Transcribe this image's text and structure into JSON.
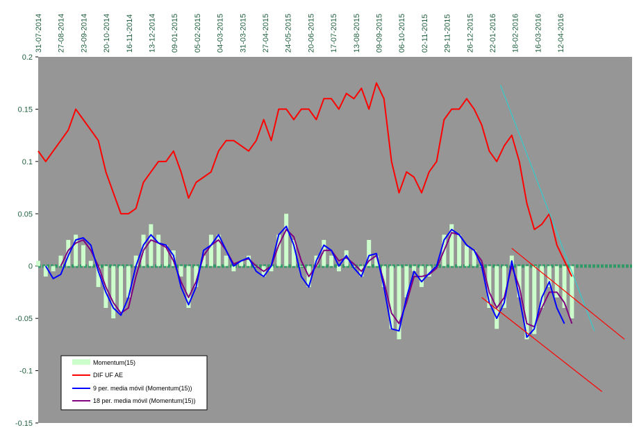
{
  "chart_data": {
    "type": "line",
    "title": "",
    "xlabel": "",
    "ylabel": "",
    "ylim": [
      -0.15,
      0.2
    ],
    "yticks": [
      "0.2",
      "0.15",
      "0.1",
      "0.05",
      "0",
      "-0.05",
      "-0.1",
      "-0.15"
    ],
    "xtick_labels": [
      "31-07-2014",
      "27-08-2014",
      "23-09-2014",
      "20-10-2014",
      "16-11-2014",
      "13-12-2014",
      "09-01-2015",
      "05-02-2015",
      "04-03-2015",
      "31-03-2015",
      "27-04-2015",
      "24-05-2015",
      "20-06-2015",
      "17-07-2015",
      "13-08-2015",
      "09-09-2015",
      "06-10-2015",
      "02-11-2015",
      "29-11-2015",
      "26-12-2015",
      "22-01-2016",
      "18-02-2016",
      "16-03-2016",
      "12-04-2016"
    ],
    "legend": {
      "placement": "bottom-left",
      "entries": [
        "Momentum(15)",
        "DIF UF AE",
        "9 per. media móvil (Momentum(15))",
        "18 per. media móvil (Momentum(15))"
      ]
    },
    "colors": {
      "plot_bg": "#969696",
      "dif": "#ff0000",
      "momentum": "#ccffcc",
      "ma9": "#0000ff",
      "ma18": "#800080",
      "zero_line": "#339966",
      "trend_cyan": "#33cccc",
      "trend_red": "#ff0000",
      "tick_text": "#1f5f3f"
    },
    "x_range": [
      0,
      158
    ],
    "series": [
      {
        "name": "DIF UF AE",
        "style": "line",
        "x": [
          0,
          2,
          4,
          6,
          8,
          10,
          12,
          14,
          16,
          18,
          20,
          22,
          24,
          26,
          28,
          30,
          32,
          34,
          36,
          38,
          40,
          42,
          44,
          46,
          48,
          50,
          52,
          54,
          56,
          58,
          60,
          62,
          64,
          66,
          68,
          70,
          72,
          74,
          76,
          78,
          80,
          82,
          84,
          86,
          88,
          90,
          92,
          94,
          96,
          98,
          100,
          102,
          104,
          106,
          108,
          110,
          112,
          114,
          116,
          118,
          120,
          122,
          124,
          126,
          128,
          130,
          132,
          134,
          136,
          138,
          140,
          142
        ],
        "values": [
          0.11,
          0.1,
          0.11,
          0.12,
          0.13,
          0.15,
          0.14,
          0.13,
          0.12,
          0.09,
          0.07,
          0.05,
          0.05,
          0.055,
          0.08,
          0.09,
          0.1,
          0.1,
          0.11,
          0.09,
          0.065,
          0.08,
          0.085,
          0.09,
          0.11,
          0.12,
          0.12,
          0.115,
          0.11,
          0.12,
          0.14,
          0.12,
          0.15,
          0.15,
          0.14,
          0.15,
          0.15,
          0.14,
          0.16,
          0.16,
          0.15,
          0.165,
          0.16,
          0.17,
          0.15,
          0.175,
          0.16,
          0.1,
          0.07,
          0.09,
          0.085,
          0.07,
          0.09,
          0.1,
          0.14,
          0.15,
          0.15,
          0.16,
          0.15,
          0.135,
          0.11,
          0.1,
          0.115,
          0.125,
          0.1,
          0.06,
          0.035,
          0.04,
          0.05,
          0.02,
          0.005,
          -0.01
        ]
      },
      {
        "name": "Momentum(15)",
        "style": "bars",
        "x": [
          0,
          2,
          4,
          6,
          8,
          10,
          12,
          14,
          16,
          18,
          20,
          22,
          24,
          26,
          28,
          30,
          32,
          34,
          36,
          38,
          40,
          42,
          44,
          46,
          48,
          50,
          52,
          54,
          56,
          58,
          60,
          62,
          64,
          66,
          68,
          70,
          72,
          74,
          76,
          78,
          80,
          82,
          84,
          86,
          88,
          90,
          92,
          94,
          96,
          98,
          100,
          102,
          104,
          106,
          108,
          110,
          112,
          114,
          116,
          118,
          120,
          122,
          124,
          126,
          128,
          130,
          132,
          134,
          136,
          138,
          140,
          142
        ],
        "values": [
          0.005,
          -0.01,
          -0.005,
          0.01,
          0.025,
          0.03,
          0.02,
          0.005,
          -0.02,
          -0.04,
          -0.05,
          -0.045,
          -0.03,
          0.01,
          0.03,
          0.04,
          0.03,
          0.02,
          0.015,
          -0.01,
          -0.04,
          -0.02,
          0.01,
          0.03,
          0.03,
          0.01,
          -0.005,
          0.005,
          0.01,
          0.0,
          -0.01,
          -0.005,
          0.03,
          0.05,
          0.025,
          0.0,
          -0.02,
          0.01,
          0.025,
          0.01,
          -0.005,
          0.015,
          0.0,
          -0.01,
          0.025,
          0.01,
          -0.02,
          -0.06,
          -0.07,
          -0.03,
          -0.005,
          -0.02,
          -0.01,
          0.0,
          0.03,
          0.04,
          0.03,
          0.02,
          0.015,
          0.0,
          -0.04,
          -0.06,
          -0.04,
          0.01,
          -0.03,
          -0.07,
          -0.065,
          -0.04,
          -0.02,
          -0.03,
          -0.04,
          -0.05
        ]
      },
      {
        "name": "9 per. media móvil (Momentum(15))",
        "style": "line",
        "x": [
          2,
          4,
          6,
          8,
          10,
          12,
          14,
          16,
          18,
          20,
          22,
          24,
          26,
          28,
          30,
          32,
          34,
          36,
          38,
          40,
          42,
          44,
          46,
          48,
          50,
          52,
          54,
          56,
          58,
          60,
          62,
          64,
          66,
          68,
          70,
          72,
          74,
          76,
          78,
          80,
          82,
          84,
          86,
          88,
          90,
          92,
          94,
          96,
          98,
          100,
          102,
          104,
          106,
          108,
          110,
          112,
          114,
          116,
          118,
          120,
          122,
          124,
          126,
          128,
          130,
          132,
          134,
          136,
          138,
          140
        ],
        "values": [
          0.0,
          -0.012,
          -0.008,
          0.01,
          0.025,
          0.027,
          0.02,
          -0.005,
          -0.025,
          -0.04,
          -0.047,
          -0.03,
          0.0,
          0.02,
          0.03,
          0.022,
          0.02,
          0.01,
          -0.02,
          -0.037,
          -0.02,
          0.015,
          0.02,
          0.03,
          0.015,
          0.0,
          0.005,
          0.008,
          -0.005,
          -0.01,
          0.0,
          0.03,
          0.038,
          0.02,
          -0.01,
          -0.02,
          0.005,
          0.02,
          0.015,
          0.0,
          0.01,
          -0.002,
          -0.01,
          0.01,
          0.012,
          -0.02,
          -0.06,
          -0.062,
          -0.03,
          -0.005,
          -0.015,
          -0.007,
          0.0,
          0.025,
          0.035,
          0.03,
          0.02,
          0.015,
          0.0,
          -0.035,
          -0.05,
          -0.035,
          0.005,
          -0.03,
          -0.068,
          -0.06,
          -0.03,
          -0.015,
          -0.04,
          -0.055
        ]
      },
      {
        "name": "18 per. media móvil (Momentum(15))",
        "style": "line",
        "x": [
          6,
          8,
          10,
          12,
          14,
          16,
          18,
          20,
          22,
          24,
          26,
          28,
          30,
          32,
          34,
          36,
          38,
          40,
          42,
          44,
          46,
          48,
          50,
          52,
          54,
          56,
          58,
          60,
          62,
          64,
          66,
          68,
          70,
          72,
          74,
          76,
          78,
          80,
          82,
          84,
          86,
          88,
          90,
          92,
          94,
          96,
          98,
          100,
          102,
          104,
          106,
          108,
          110,
          112,
          114,
          116,
          118,
          120,
          122,
          124,
          126,
          128,
          130,
          132,
          134,
          136,
          138,
          140,
          142
        ],
        "values": [
          0.0,
          0.015,
          0.022,
          0.025,
          0.015,
          0.0,
          -0.02,
          -0.035,
          -0.045,
          -0.04,
          -0.01,
          0.015,
          0.025,
          0.022,
          0.018,
          0.005,
          -0.015,
          -0.03,
          -0.015,
          0.01,
          0.02,
          0.025,
          0.015,
          0.002,
          0.005,
          0.007,
          0.0,
          -0.005,
          0.0,
          0.02,
          0.035,
          0.028,
          0.005,
          -0.01,
          0.0,
          0.015,
          0.015,
          0.005,
          0.008,
          0.002,
          -0.005,
          0.005,
          0.01,
          -0.015,
          -0.045,
          -0.055,
          -0.035,
          -0.01,
          -0.01,
          -0.008,
          -0.002,
          0.015,
          0.032,
          0.03,
          0.02,
          0.015,
          0.005,
          -0.025,
          -0.04,
          -0.03,
          0.0,
          -0.02,
          -0.055,
          -0.058,
          -0.04,
          -0.025,
          -0.025,
          -0.035,
          -0.055
        ]
      }
    ],
    "trend_lines": [
      {
        "color": "cyan",
        "x": [
          123,
          148
        ],
        "y": [
          0.173,
          -0.062
        ]
      },
      {
        "color": "red",
        "x": [
          126,
          156
        ],
        "y": [
          0.017,
          -0.07
        ]
      },
      {
        "color": "red",
        "x": [
          118,
          150
        ],
        "y": [
          -0.03,
          -0.12
        ]
      }
    ]
  }
}
